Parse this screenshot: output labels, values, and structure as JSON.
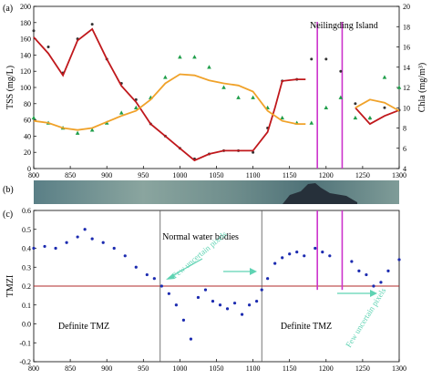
{
  "chart_data": [
    {
      "panel": "(a)",
      "type": "scatter",
      "ylabel_left": "TSS (mg/L)",
      "ylabel_right": "Chla (mg/m³)",
      "xlim": [
        800,
        1300
      ],
      "ylim_left": [
        0,
        200
      ],
      "ylim_right": [
        4,
        20
      ],
      "x_ticks": [
        800,
        850,
        900,
        950,
        1000,
        1050,
        1100,
        1150,
        1200,
        1250,
        1300
      ],
      "yleft_ticks": [
        0,
        20,
        40,
        60,
        80,
        100,
        120,
        140,
        160,
        180,
        200
      ],
      "yright_ticks": [
        4,
        6,
        8,
        10,
        12,
        14,
        16,
        18,
        20
      ],
      "annotation": "Neilingding Island",
      "annotation_lines_x": [
        1188,
        1222
      ],
      "colors": {
        "tss": "#333333",
        "tss_trend": "#c0181c",
        "chla": "#1f9e4a",
        "chla_trend": "#f0a22a",
        "island_lines": "#cc33cc"
      },
      "series": [
        {
          "axis": "left",
          "style": "markers",
          "color": "#333333",
          "x": [
            800,
            820,
            840,
            860,
            880,
            900,
            920,
            940,
            960,
            980,
            1000,
            1020,
            1040,
            1060,
            1080,
            1100,
            1120,
            1140,
            1160,
            1180,
            1200,
            1220,
            1240,
            1260,
            1280,
            1300
          ],
          "y": [
            170,
            150,
            118,
            160,
            178,
            135,
            105,
            85,
            55,
            40,
            25,
            12,
            18,
            22,
            22,
            20,
            50,
            108,
            110,
            135,
            135,
            120,
            80,
            62,
            75,
            72
          ]
        },
        {
          "axis": "left",
          "style": "line",
          "color": "#c0181c",
          "x": [
            800,
            820,
            840,
            860,
            880,
            900,
            920,
            940,
            960,
            980,
            1000,
            1020,
            1040,
            1060,
            1080,
            1100,
            1120,
            1130,
            1140,
            1160,
            1172
          ],
          "y": [
            162,
            142,
            115,
            158,
            172,
            135,
            102,
            82,
            55,
            40,
            25,
            10,
            18,
            22,
            22,
            22,
            45,
            75,
            108,
            110,
            110
          ]
        },
        {
          "axis": "left",
          "style": "line",
          "color": "#c0181c",
          "x": [
            1240,
            1260,
            1280,
            1300
          ],
          "y": [
            75,
            55,
            65,
            72
          ]
        },
        {
          "axis": "right",
          "style": "markers",
          "color": "#1f9e4a",
          "x": [
            800,
            820,
            840,
            860,
            880,
            900,
            920,
            940,
            960,
            980,
            1000,
            1020,
            1040,
            1060,
            1080,
            1100,
            1120,
            1140,
            1160,
            1180,
            1200,
            1220,
            1240,
            1260,
            1280,
            1300
          ],
          "y": [
            9,
            8.5,
            8,
            7.5,
            7.8,
            8.5,
            9.5,
            10,
            11,
            13,
            15,
            15,
            14,
            12,
            11,
            11,
            10,
            9,
            8.5,
            8.5,
            10,
            11,
            9,
            9,
            13,
            12
          ]
        },
        {
          "axis": "right",
          "style": "line",
          "color": "#f0a22a",
          "x": [
            800,
            820,
            840,
            860,
            880,
            900,
            920,
            940,
            960,
            980,
            1000,
            1020,
            1040,
            1060,
            1080,
            1100,
            1120,
            1140,
            1160,
            1172
          ],
          "y": [
            8.7,
            8.5,
            8.0,
            7.8,
            8.0,
            8.6,
            9.2,
            9.7,
            10.8,
            12.4,
            13.3,
            13.2,
            12.7,
            12.4,
            12.2,
            11.6,
            9.7,
            8.7,
            8.4,
            8.4
          ]
        },
        {
          "axis": "right",
          "style": "line",
          "color": "#f0a22a",
          "x": [
            1240,
            1260,
            1280,
            1300
          ],
          "y": [
            10.0,
            10.8,
            10.5,
            9.7
          ]
        }
      ]
    },
    {
      "panel": "(b)",
      "type": "image-strip"
    },
    {
      "panel": "(c)",
      "type": "scatter",
      "ylabel": "TMZI",
      "xlim": [
        800,
        1300
      ],
      "ylim": [
        -0.2,
        0.6
      ],
      "x_ticks": [
        800,
        850,
        900,
        950,
        1000,
        1050,
        1100,
        1150,
        1200,
        1250,
        1300
      ],
      "y_ticks": [
        -0.2,
        -0.1,
        0.0,
        0.1,
        0.2,
        0.3,
        0.4,
        0.5,
        0.6
      ],
      "threshold": 0.2,
      "region_lines_x": [
        973,
        1112
      ],
      "region_labels": [
        "Definite TMZ",
        "Normal water bodies",
        "Definite TMZ"
      ],
      "annotations": [
        "Few uncertain pixels",
        "Few uncertain pixels"
      ],
      "colors": {
        "points": "#1c2bb0",
        "threshold": "#b02828",
        "island_lines": "#cc33cc",
        "arrows": "#5fd3b3"
      },
      "island_lines_x": [
        1188,
        1222
      ],
      "series": [
        {
          "style": "markers",
          "color": "#1c2bb0",
          "x": [
            800,
            815,
            830,
            845,
            860,
            870,
            880,
            895,
            910,
            925,
            940,
            955,
            965,
            975,
            985,
            995,
            1005,
            1015,
            1025,
            1035,
            1045,
            1055,
            1065,
            1075,
            1085,
            1095,
            1105,
            1112,
            1120,
            1130,
            1140,
            1150,
            1160,
            1170,
            1185,
            1195,
            1205,
            1235,
            1245,
            1255,
            1265,
            1275,
            1285,
            1300
          ],
          "y": [
            0.4,
            0.41,
            0.4,
            0.43,
            0.46,
            0.5,
            0.45,
            0.43,
            0.4,
            0.36,
            0.3,
            0.26,
            0.24,
            0.2,
            0.16,
            0.1,
            0.02,
            -0.08,
            0.14,
            0.18,
            0.12,
            0.1,
            0.08,
            0.11,
            0.05,
            0.1,
            0.12,
            0.18,
            0.24,
            0.32,
            0.35,
            0.37,
            0.38,
            0.36,
            0.4,
            0.38,
            0.36,
            0.33,
            0.28,
            0.26,
            0.2,
            0.22,
            0.28,
            0.34
          ]
        }
      ]
    }
  ]
}
